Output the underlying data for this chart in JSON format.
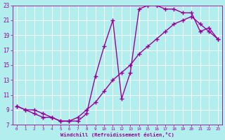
{
  "xlabel": "Windchill (Refroidissement éolien,°C)",
  "line1_x": [
    0,
    1,
    2,
    3,
    4,
    5,
    6,
    7,
    8,
    9,
    10,
    11,
    12,
    13,
    14,
    15,
    16,
    17,
    18,
    19,
    20,
    21,
    22,
    23
  ],
  "line1_y": [
    9.5,
    9.0,
    8.5,
    8.0,
    8.0,
    7.5,
    7.5,
    7.5,
    8.5,
    13.5,
    17.5,
    21.0,
    10.5,
    14.0,
    22.5,
    23.0,
    23.0,
    22.5,
    22.5,
    22.0,
    22.0,
    19.5,
    20.0,
    18.5
  ],
  "line2_x": [
    0,
    1,
    2,
    3,
    4,
    5,
    6,
    7,
    8,
    9,
    10,
    11,
    12,
    13,
    14,
    15,
    16,
    17,
    18,
    19,
    20,
    21,
    22,
    23
  ],
  "line2_y": [
    9.5,
    9.0,
    9.0,
    8.5,
    8.0,
    7.5,
    7.5,
    8.0,
    9.0,
    10.0,
    11.5,
    13.0,
    14.0,
    15.0,
    16.5,
    17.5,
    18.5,
    19.5,
    20.5,
    21.0,
    21.5,
    20.5,
    19.5,
    18.5
  ],
  "line_color": "#990099",
  "bg_color": "#b2eeee",
  "grid_color": "#cccccc",
  "tick_color": "#990099",
  "label_color": "#990099",
  "xlim": [
    -0.5,
    23.5
  ],
  "ylim": [
    7,
    23
  ],
  "yticks": [
    7,
    9,
    11,
    13,
    15,
    17,
    19,
    21,
    23
  ],
  "xticks": [
    0,
    1,
    2,
    3,
    4,
    5,
    6,
    7,
    8,
    9,
    10,
    11,
    12,
    13,
    14,
    15,
    16,
    17,
    18,
    19,
    20,
    21,
    22,
    23
  ],
  "marker": "+",
  "markersize": 4,
  "linewidth": 1.0
}
